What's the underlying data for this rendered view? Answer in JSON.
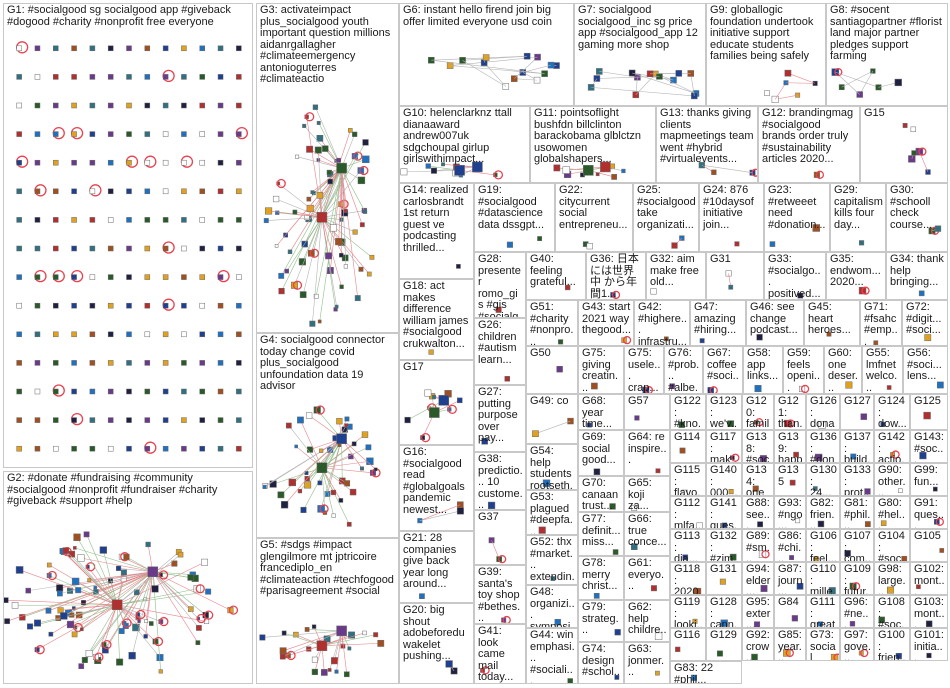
{
  "colors": {
    "border": "#c8c8c8",
    "edge_red": "#e8838b",
    "edge_gray": "#b4b4b4",
    "edge_green": "#8fc08a",
    "loop_red": "#e8424f",
    "node_palette": [
      "#1f3f8f",
      "#2a5a2a",
      "#6a3a8a",
      "#b03030",
      "#e0a020",
      "#307080",
      "#202040",
      "#a05020",
      "#2070c0",
      "#ffffff"
    ]
  },
  "groups": [
    {
      "id": "G1",
      "label": "G1: #socialgood sg socialgood app #giveback #dogood #charity #nonprofit free everyone",
      "layout": "grid"
    },
    {
      "id": "G2",
      "label": "G2: #donate #fundraising #community #socialgood #nonprofit #fundraiser #charity #giveback #support #help",
      "layout": "hub"
    },
    {
      "id": "G3",
      "label": "G3: activateimpact plus_socialgood youth important question millions aidanrgallagher #climateemergency antonioguterres #climateactio",
      "layout": "hub"
    },
    {
      "id": "G4",
      "label": "G4: socialgood connector today change covid plus_socialgood unfoundation data 19 advisor",
      "layout": "hub"
    },
    {
      "id": "G5",
      "label": "G5: #sdgs #impact glengilmore mt jptricoire francediplo_en #climateaction #techfogood #parisagreement #social",
      "layout": "hub"
    },
    {
      "id": "G6",
      "label": "G6: instant hello firend join big offer limited everyone usd coin",
      "layout": "chain"
    },
    {
      "id": "G7",
      "label": "G7: socialgood socialgood_inc sg price app #socialgood_app 12 gaming more shop",
      "layout": "chain"
    },
    {
      "id": "G8",
      "label": "G8: #socent santiagopartner #florist land major partner pledges support farming",
      "layout": "scatter"
    },
    {
      "id": "G9",
      "label": "G9: globallogic foundation undertook initiative support educate students families being safely",
      "layout": "scatter"
    },
    {
      "id": "G10",
      "label": "G10: helenclarknz ttall dianaaward andrew007uk sdgchoupal girlup girlswithimpact...",
      "layout": "hub"
    },
    {
      "id": "G11",
      "label": "G11: pointsoflight bushfdn billclinton barackobama glblctzn usowomen globalshapers...",
      "layout": "hub"
    },
    {
      "id": "G12",
      "label": "G12: brandingmag #socialgood brands order truly #sustainability articles 2020...",
      "layout": "scatter"
    },
    {
      "id": "G13",
      "label": "G13: thanks giving clients mapmeetings team went #hybrid #virtualevents...",
      "layout": "scatter"
    },
    {
      "id": "G14",
      "label": "G14: realized carlosbrandt 1st return guest ve podcasting thrilled...",
      "layout": "scatter"
    },
    {
      "id": "G15",
      "label": "G15",
      "layout": "scatter"
    },
    {
      "id": "G16",
      "label": "G16: #socialgood read #globalgoals pandemic newest...",
      "layout": "scatter"
    },
    {
      "id": "G17",
      "label": "G17",
      "layout": "hub"
    },
    {
      "id": "G18",
      "label": "G18: act makes difference william james #socialgood crukwalton...",
      "layout": "scatter"
    },
    {
      "id": "G19",
      "label": "G19: #socialgood #datascience data dssgpt...",
      "layout": "scatter"
    },
    {
      "id": "G20",
      "label": "G20: big shout adobeforedu wakelet pushing...",
      "layout": "scatter"
    },
    {
      "id": "G21",
      "label": "G21: 28 companies give back year long around...",
      "layout": "scatter"
    },
    {
      "id": "G22",
      "label": "G22: citycurrent social entrepreneu...",
      "layout": "scatter"
    },
    {
      "id": "G23",
      "label": "G23: #retweeet need #donation...",
      "layout": "scatter"
    },
    {
      "id": "G24",
      "label": "G24: 876 #10daysof initiative join...",
      "layout": "scatter"
    },
    {
      "id": "G25",
      "label": "G25: #socialgood take organizati...",
      "layout": "scatter"
    },
    {
      "id": "G26",
      "label": "G26: children #autism learn...",
      "layout": "scatter"
    },
    {
      "id": "G27",
      "label": "G27: putting purpose over pay...",
      "layout": "scatter"
    },
    {
      "id": "G28",
      "label": "G28: presenter romo_gis #gis #socialg...",
      "layout": "scatter"
    },
    {
      "id": "G29",
      "label": "G29: capitalism kills four day...",
      "layout": "scatter"
    },
    {
      "id": "G30",
      "label": "G30: #schooll check course...",
      "layout": "scatter"
    },
    {
      "id": "G31",
      "label": "G31",
      "layout": "scatter"
    },
    {
      "id": "G32",
      "label": "G32: aim make free old...",
      "layout": "scatter"
    },
    {
      "id": "G33",
      "label": "G33: #socialgo... positived...",
      "layout": "scatter"
    },
    {
      "id": "G34",
      "label": "G34: thank help bringing...",
      "layout": "scatter"
    },
    {
      "id": "G35",
      "label": "G35: endwom... 2020...",
      "layout": "scatter"
    },
    {
      "id": "G36",
      "label": "G36: 日本 には世界中 から年間1...",
      "layout": "scatter"
    },
    {
      "id": "G37",
      "label": "G37",
      "layout": "scatter"
    },
    {
      "id": "G38",
      "label": "G38: predictio... 10 custome...",
      "layout": "scatter"
    },
    {
      "id": "G39",
      "label": "G39: santa's toy shop #bethes...",
      "layout": "scatter"
    },
    {
      "id": "G40",
      "label": "G40: feeling grateful...",
      "layout": "scatter"
    },
    {
      "id": "G41",
      "label": "G41: look came mail today...",
      "layout": "scatter"
    },
    {
      "id": "G42",
      "label": "G42: #highere... infrastru...",
      "layout": "scatter"
    },
    {
      "id": "G43",
      "label": "G43: start 2021 way thegood...",
      "layout": "scatter"
    },
    {
      "id": "G44",
      "label": "G44: win emphasi... #sociali...",
      "layout": "scatter"
    },
    {
      "id": "G45",
      "label": "G45: heart heroes...",
      "layout": "scatter"
    },
    {
      "id": "G46",
      "label": "G46: see change podcast...",
      "layout": "scatter"
    },
    {
      "id": "G47",
      "label": "G47: amazing #hiring...",
      "layout": "scatter"
    },
    {
      "id": "G48",
      "label": "G48: organizi... symposi...",
      "layout": "scatter"
    },
    {
      "id": "G49",
      "label": "G49: co",
      "layout": "scatter"
    },
    {
      "id": "G50",
      "label": "G50",
      "layout": "scatter"
    },
    {
      "id": "G51",
      "label": "G51: #charity #nonpro...",
      "layout": "scatter"
    },
    {
      "id": "G52",
      "label": "G52: thx #market... extendin...",
      "layout": "scatter"
    },
    {
      "id": "G53",
      "label": "G53: plagued #deepfa...",
      "layout": "scatter"
    },
    {
      "id": "G54",
      "label": "G54: help students rootseth...",
      "layout": "scatter"
    },
    {
      "id": "G55",
      "label": "G55: lmfnet welco...",
      "layout": "scatter"
    },
    {
      "id": "G56",
      "label": "G56: #soci... lens...",
      "layout": "scatter"
    },
    {
      "id": "G57",
      "label": "G57",
      "layout": "scatter"
    },
    {
      "id": "G58",
      "label": "G58: app links...",
      "layout": "scatter"
    },
    {
      "id": "G59",
      "label": "G59: feels openi...",
      "layout": "scatter"
    },
    {
      "id": "G60",
      "label": "G60: one deser...",
      "layout": "scatter"
    },
    {
      "id": "G61",
      "label": "G61: everyo...",
      "layout": "scatter"
    },
    {
      "id": "G62",
      "label": "G62: help childre...",
      "layout": "scatter"
    },
    {
      "id": "G63",
      "label": "G63: jonmer...",
      "layout": "scatter"
    },
    {
      "id": "G64",
      "label": "G64: re inspire...",
      "layout": "scatter"
    },
    {
      "id": "G65",
      "label": "G65: koji za...",
      "layout": "scatter"
    },
    {
      "id": "G66",
      "label": "G66: true conce...",
      "layout": "scatter"
    },
    {
      "id": "G67",
      "label": "G67: coffee #soci...",
      "layout": "scatter"
    },
    {
      "id": "G68",
      "label": "G68: year time...",
      "layout": "scatter"
    },
    {
      "id": "G69",
      "label": "G69: social good...",
      "layout": "scatter"
    },
    {
      "id": "G70",
      "label": "G70: canaan trust...",
      "layout": "scatter"
    },
    {
      "id": "G71",
      "label": "G71: #fsahc #emp...",
      "layout": "scatter"
    },
    {
      "id": "G72",
      "label": "G72: #digit... #soci...",
      "layout": "scatter"
    },
    {
      "id": "G73",
      "label": "G73: social #dona...",
      "layout": "scatter"
    },
    {
      "id": "G74",
      "label": "G74: design #schol...",
      "layout": "scatter"
    },
    {
      "id": "G75",
      "label": "G75: giving creatin...",
      "layout": "scatter"
    },
    {
      "id": "G75b",
      "label": "G75: usele... crap...",
      "layout": "scatter"
    },
    {
      "id": "G76",
      "label": "G76: #prob... #albe...",
      "layout": "scatter"
    },
    {
      "id": "G77",
      "label": "G77: definit... miss...",
      "layout": "scatter"
    },
    {
      "id": "G78",
      "label": "G78: merry christ...",
      "layout": "scatter"
    },
    {
      "id": "G79",
      "label": "G79: strateg...",
      "layout": "scatter"
    },
    {
      "id": "G80",
      "label": "G80: #hel... dele...",
      "layout": "scatter"
    },
    {
      "id": "G81",
      "label": "G81: #phil... #am...",
      "layout": "scatter"
    },
    {
      "id": "G82",
      "label": "G82: frien... soci...",
      "layout": "scatter"
    },
    {
      "id": "G83",
      "label": "G83: 22 #phil...",
      "layout": "scatter"
    },
    {
      "id": "G84",
      "label": "G84",
      "layout": "scatter"
    },
    {
      "id": "G85",
      "label": "G85: year...",
      "layout": "scatter"
    },
    {
      "id": "G86",
      "label": "G86: #chi... feel...",
      "layout": "scatter"
    },
    {
      "id": "G87",
      "label": "G87: journ...",
      "layout": "scatter"
    },
    {
      "id": "G88",
      "label": "G88: see... sche...",
      "layout": "scatter"
    },
    {
      "id": "G89",
      "label": "G89: #sm... end...",
      "layout": "scatter"
    },
    {
      "id": "G90",
      "label": "G90: other...",
      "layout": "scatter"
    },
    {
      "id": "G91",
      "label": "G91: ques... wea...",
      "layout": "scatter"
    },
    {
      "id": "G92",
      "label": "G92: crow...",
      "layout": "scatter"
    },
    {
      "id": "G93",
      "label": "G93: #ngo...",
      "layout": "scatter"
    },
    {
      "id": "G94",
      "label": "G94: elder...",
      "layout": "scatter"
    },
    {
      "id": "G95",
      "label": "G95: exter...",
      "layout": "scatter"
    },
    {
      "id": "G96",
      "label": "G96: #ne... fam...",
      "layout": "scatter"
    },
    {
      "id": "G97",
      "label": "G97: gove...",
      "layout": "scatter"
    },
    {
      "id": "G98",
      "label": "G98: large...",
      "layout": "scatter"
    },
    {
      "id": "G99",
      "label": "G99: fun...",
      "layout": "scatter"
    },
    {
      "id": "G100",
      "label": "G100: frien...",
      "layout": "scatter"
    },
    {
      "id": "G101",
      "label": "G101: initia...",
      "layout": "scatter"
    },
    {
      "id": "G102",
      "label": "G102: mont...",
      "layout": "scatter"
    },
    {
      "id": "G103",
      "label": "G103: mont...",
      "layout": "scatter"
    },
    {
      "id": "G104",
      "label": "G104: #soc...",
      "layout": "scatter"
    },
    {
      "id": "G105",
      "label": "G105",
      "layout": "scatter"
    },
    {
      "id": "G106",
      "label": "G106: feel...",
      "layout": "scatter"
    },
    {
      "id": "G107",
      "label": "G107: com...",
      "layout": "scatter"
    },
    {
      "id": "G108",
      "label": "G108: #soc...",
      "layout": "scatter"
    },
    {
      "id": "G109",
      "label": "G109: futur...",
      "layout": "scatter"
    },
    {
      "id": "G110",
      "label": "G110: mille...",
      "layout": "scatter"
    },
    {
      "id": "G111",
      "label": "G111: great",
      "layout": "scatter"
    },
    {
      "id": "G112",
      "label": "G112: mlfa...",
      "layout": "scatter"
    },
    {
      "id": "G113",
      "label": "G113: dia...",
      "layout": "scatter"
    },
    {
      "id": "G114",
      "label": "G114",
      "layout": "scatter"
    },
    {
      "id": "G115",
      "label": "G115: flavo...",
      "layout": "scatter"
    },
    {
      "id": "G116",
      "label": "G116",
      "layout": "scatter"
    },
    {
      "id": "G117",
      "label": "G117: mak...",
      "layout": "scatter"
    },
    {
      "id": "G118",
      "label": "G118: 2020...",
      "layout": "scatter"
    },
    {
      "id": "G119",
      "label": "G119: looki...",
      "layout": "scatter"
    },
    {
      "id": "G120",
      "label": "G120: famil...",
      "layout": "scatter"
    },
    {
      "id": "G121",
      "label": "G121: than...",
      "layout": "scatter"
    },
    {
      "id": "G122",
      "label": "G122: #kno...",
      "layout": "scatter"
    },
    {
      "id": "G123",
      "label": "G123: we'v...",
      "layout": "scatter"
    },
    {
      "id": "G124",
      "label": "G124: dow...",
      "layout": "scatter"
    },
    {
      "id": "G125",
      "label": "G125",
      "layout": "scatter"
    },
    {
      "id": "G126",
      "label": "G126: dona...",
      "layout": "scatter"
    },
    {
      "id": "G127",
      "label": "G127",
      "layout": "scatter"
    },
    {
      "id": "G128",
      "label": "G128: cann...",
      "layout": "scatter"
    },
    {
      "id": "G129",
      "label": "G129",
      "layout": "scatter"
    },
    {
      "id": "G130",
      "label": "G130: 24...",
      "layout": "scatter"
    },
    {
      "id": "G131",
      "label": "G131",
      "layout": "scatter"
    },
    {
      "id": "G132",
      "label": "G132: #zim... zim...",
      "layout": "scatter"
    },
    {
      "id": "G133",
      "label": "G133: prot...",
      "layout": "scatter"
    },
    {
      "id": "G134",
      "label": "G134: one",
      "layout": "scatter"
    },
    {
      "id": "G135",
      "label": "G135",
      "layout": "scatter"
    },
    {
      "id": "G136",
      "label": "G136: #don... #do...",
      "layout": "scatter"
    },
    {
      "id": "G137",
      "label": "G137: build...",
      "layout": "scatter"
    },
    {
      "id": "G138",
      "label": "G138: #soc... happ...",
      "layout": "scatter"
    },
    {
      "id": "G139",
      "label": "G139: happ...",
      "layout": "scatter"
    },
    {
      "id": "G140",
      "label": "G140: 000...",
      "layout": "scatter"
    },
    {
      "id": "G141",
      "label": "G141: ques...",
      "layout": "scatter"
    },
    {
      "id": "G142",
      "label": "G142: actio...",
      "layout": "scatter"
    },
    {
      "id": "G143",
      "label": "G143: #soc...",
      "layout": "scatter"
    }
  ]
}
